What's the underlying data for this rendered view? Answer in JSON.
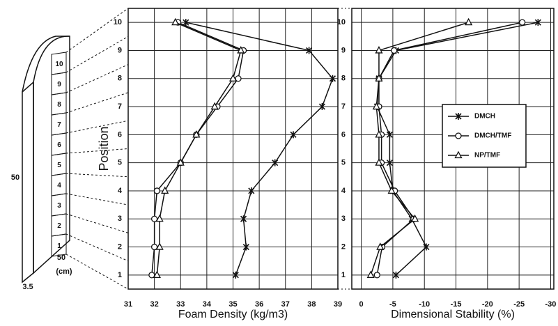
{
  "diagram": {
    "cells": [
      "1",
      "2",
      "3",
      "4",
      "5",
      "6",
      "7",
      "8",
      "9",
      "10"
    ],
    "height_label": "50",
    "thickness_label": "3.5",
    "width_label": "50",
    "unit": "(cm)"
  },
  "chart_data": [
    {
      "type": "line",
      "x_label": "Foam Density (kg/m3)",
      "y_label": "Position",
      "y": [
        1,
        2,
        3,
        4,
        5,
        6,
        7,
        8,
        9,
        10
      ],
      "xlim": [
        31,
        39
      ],
      "xticks": [
        31,
        32,
        33,
        34,
        35,
        36,
        37,
        38,
        39
      ],
      "ylim": [
        0.5,
        10.5
      ],
      "yticks": [
        1,
        2,
        3,
        4,
        5,
        6,
        7,
        8,
        9,
        10
      ],
      "grid": true,
      "series": [
        {
          "name": "DMCH",
          "color": "#111111",
          "marker": "x",
          "values": [
            35.1,
            35.5,
            35.4,
            35.7,
            36.6,
            37.3,
            38.4,
            38.8,
            37.9,
            33.2
          ]
        },
        {
          "name": "DMCH/TMF",
          "color": "#111111",
          "marker": "circle",
          "values": [
            31.9,
            32.0,
            32.0,
            32.1,
            33.0,
            33.6,
            34.4,
            35.2,
            35.4,
            32.9
          ]
        },
        {
          "name": "NP/TMF",
          "color": "#111111",
          "marker": "triangle",
          "values": [
            32.1,
            32.2,
            32.2,
            32.4,
            33.0,
            33.6,
            34.3,
            35.0,
            35.3,
            32.8
          ]
        }
      ]
    },
    {
      "type": "line",
      "x_label": "Dimensional Stability (%)",
      "y": [
        1,
        2,
        3,
        4,
        5,
        6,
        7,
        8,
        9,
        10
      ],
      "xlim": [
        1.5,
        -30.5
      ],
      "xticks": [
        0,
        -5,
        -10,
        -15,
        -20,
        -25,
        -30
      ],
      "ylim": [
        0.5,
        10.5
      ],
      "yticks": [
        1,
        2,
        3,
        4,
        5,
        6,
        7,
        8,
        9,
        10
      ],
      "grid": true,
      "legend": "right",
      "series": [
        {
          "name": "DMCH",
          "color": "#111111",
          "marker": "x",
          "values": [
            -5.5,
            -10.3,
            -8,
            -5,
            -4.5,
            -4.5,
            -2.5,
            -2.8,
            -5.5,
            -28
          ]
        },
        {
          "name": "DMCH/TMF",
          "color": "#111111",
          "marker": "circle",
          "values": [
            -2.5,
            -3.3,
            -8.3,
            -5.3,
            -3.2,
            -3.2,
            -2.8,
            -2.8,
            -5.2,
            -25.5
          ]
        },
        {
          "name": "NP/TMF",
          "color": "#111111",
          "marker": "triangle",
          "values": [
            -1.5,
            -3,
            -8.5,
            -4.8,
            -2.8,
            -2.8,
            -2.4,
            -2.8,
            -2.8,
            -17
          ]
        }
      ]
    }
  ]
}
